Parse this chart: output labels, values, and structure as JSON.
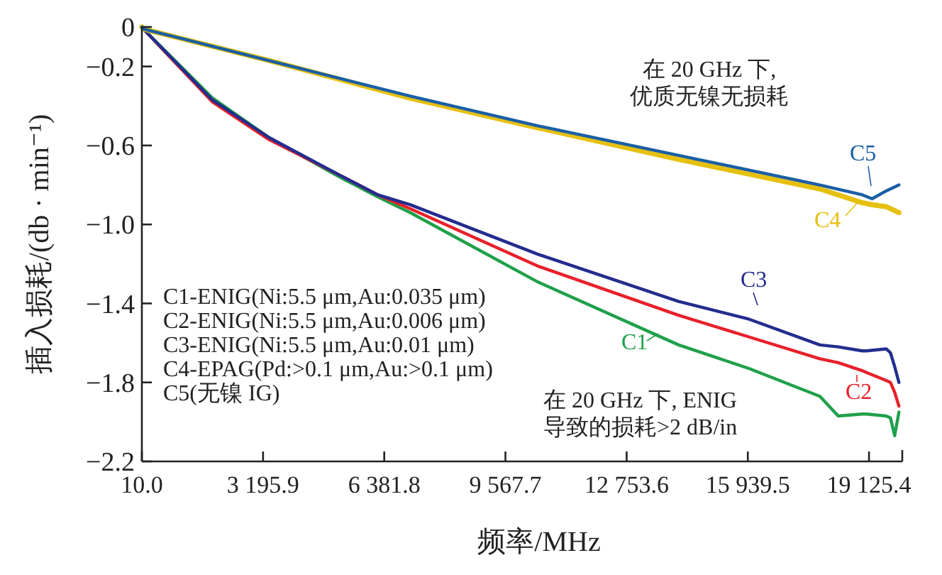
{
  "chart_data": {
    "type": "line",
    "xlabel": "频率/MHz",
    "ylabel": "插入损耗/(db · min⁻¹)",
    "xlim": [
      10,
      20000
    ],
    "ylim": [
      -2.2,
      0
    ],
    "xticks": [
      {
        "value": 10,
        "label": "10.0"
      },
      {
        "value": 3195.9,
        "label": "3 195.9"
      },
      {
        "value": 6381.8,
        "label": "6 381.8"
      },
      {
        "value": 9567.7,
        "label": "9 567.7"
      },
      {
        "value": 12753.6,
        "label": "12 753.6"
      },
      {
        "value": 15939.5,
        "label": "15 939.5"
      },
      {
        "value": 19125.4,
        "label": "19 125.4"
      }
    ],
    "yticks": [
      0,
      {
        "value": -0.2,
        "label": "−0.2"
      },
      {
        "value": -0.6,
        "label": "−0.6"
      },
      {
        "value": -1.0,
        "label": "−1.0"
      },
      {
        "value": -1.4,
        "label": "−1.4"
      },
      {
        "value": -1.8,
        "label": "−1.8"
      },
      {
        "value": -2.2,
        "label": "−2.2"
      }
    ],
    "grid": false,
    "legend": "right",
    "marker": "none",
    "line_style": "solid",
    "series": [
      {
        "name": "C1",
        "color": "#1fa04a",
        "x": [
          10,
          47,
          1867,
          3352,
          5208,
          6211,
          7065,
          10407,
          14120,
          15977,
          17833,
          18316,
          18947,
          19058,
          19578,
          19689,
          19800,
          19912
        ],
        "values": [
          0,
          -0.01,
          -0.36,
          -0.56,
          -0.76,
          -0.86,
          -0.94,
          -1.29,
          -1.61,
          -1.73,
          -1.87,
          -1.97,
          -1.96,
          -1.96,
          -1.97,
          -1.98,
          -2.07,
          -1.95
        ]
      },
      {
        "name": "C2",
        "color": "#e8202a",
        "x": [
          10,
          47,
          1867,
          3352,
          5208,
          6211,
          7065,
          10407,
          14120,
          15977,
          17833,
          18316,
          18947,
          19058,
          19578,
          19689,
          19800,
          19912
        ],
        "values": [
          0,
          -0.01,
          -0.38,
          -0.57,
          -0.75,
          -0.85,
          -0.92,
          -1.21,
          -1.46,
          -1.57,
          -1.68,
          -1.7,
          -1.74,
          -1.75,
          -1.79,
          -1.8,
          -1.85,
          -1.92
        ]
      },
      {
        "name": "C3",
        "color": "#232d8e",
        "x": [
          10,
          47,
          1867,
          3352,
          5208,
          6211,
          7065,
          10407,
          14120,
          15977,
          17833,
          18316,
          18947,
          19058,
          19578,
          19689,
          19800,
          19912
        ],
        "values": [
          0,
          -0.01,
          -0.37,
          -0.56,
          -0.75,
          -0.85,
          -0.9,
          -1.15,
          -1.39,
          -1.48,
          -1.61,
          -1.62,
          -1.64,
          -1.64,
          -1.63,
          -1.65,
          -1.72,
          -1.8
        ]
      },
      {
        "name": "C4",
        "color": "#e6c010",
        "x": [
          10,
          47,
          3352,
          7065,
          10407,
          14120,
          17833,
          18947,
          19207,
          19578,
          19912
        ],
        "values": [
          0,
          -0.01,
          -0.17,
          -0.36,
          -0.51,
          -0.67,
          -0.82,
          -0.89,
          -0.9,
          -0.91,
          -0.94
        ]
      },
      {
        "name": "C5",
        "color": "#1a5fa6",
        "x": [
          10,
          47,
          3352,
          7065,
          10407,
          14120,
          17833,
          18947,
          19207,
          19578,
          19912
        ],
        "values": [
          0,
          -0.01,
          -0.17,
          -0.35,
          -0.5,
          -0.65,
          -0.8,
          -0.85,
          -0.87,
          -0.83,
          -0.8
        ]
      }
    ],
    "annotations": [
      "C1-ENIG(Ni:5.5 μm,Au:0.035 μm)",
      "C2-ENIG(Ni:5.5 μm,Au:0.006 μm)",
      "C3-ENIG(Ni:5.5 μm,Au:0.01 μm)",
      "C4-EPAG(Pd:>0.1 μm,Au:>0.1 μm)",
      "C5(无镍 IG)",
      "在 20 GHz 下,\n优质无镍无损耗",
      "在 20 GHz 下, ENIG\n导致的损耗>2 dB/in"
    ]
  }
}
